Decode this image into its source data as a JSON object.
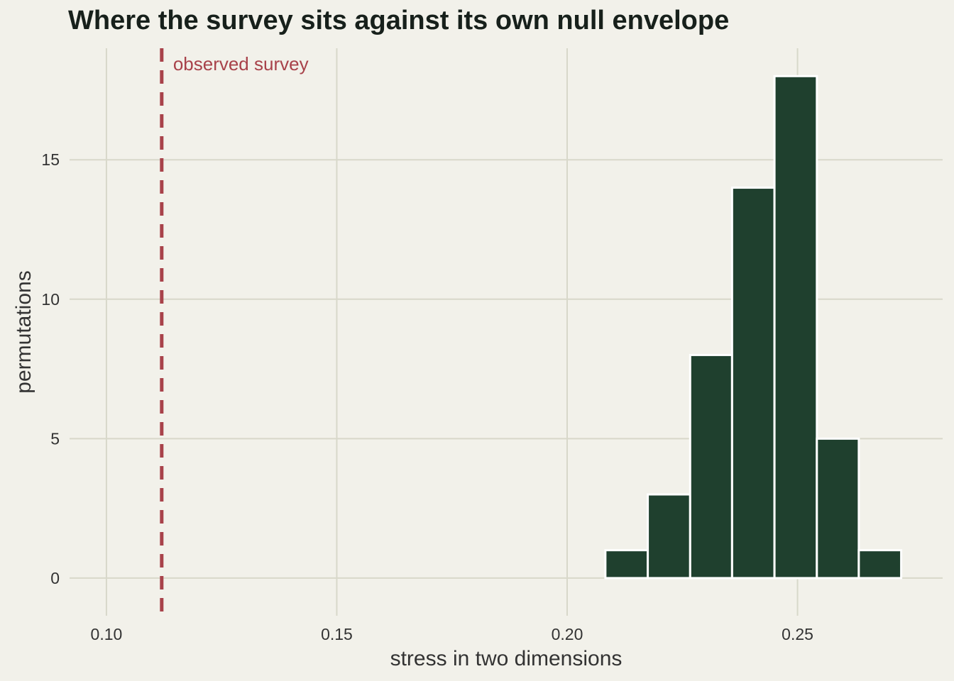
{
  "chart_data": {
    "type": "bar",
    "title": "Where the survey sits against its own null envelope",
    "xlabel": "stress in two dimensions",
    "ylabel": "permutations",
    "xlim": [
      0.092,
      0.2815
    ],
    "ylim": [
      -1.35,
      19.0
    ],
    "x_ticks": [
      {
        "value": 0.1,
        "label": "0.10"
      },
      {
        "value": 0.15,
        "label": "0.15"
      },
      {
        "value": 0.2,
        "label": "0.20"
      },
      {
        "value": 0.25,
        "label": "0.25"
      }
    ],
    "y_ticks": [
      {
        "value": 0,
        "label": "0"
      },
      {
        "value": 5,
        "label": "5"
      },
      {
        "value": 10,
        "label": "10"
      },
      {
        "value": 15,
        "label": "15"
      }
    ],
    "bins": [
      {
        "x0": 0.2083,
        "x1": 0.2175,
        "count": 1
      },
      {
        "x0": 0.2175,
        "x1": 0.2267,
        "count": 3
      },
      {
        "x0": 0.2267,
        "x1": 0.2358,
        "count": 8
      },
      {
        "x0": 0.2358,
        "x1": 0.245,
        "count": 14
      },
      {
        "x0": 0.245,
        "x1": 0.2542,
        "count": 18
      },
      {
        "x0": 0.2542,
        "x1": 0.2633,
        "count": 5
      },
      {
        "x0": 0.2633,
        "x1": 0.2725,
        "count": 1
      }
    ],
    "observed": {
      "value": 0.112,
      "label": "observed survey"
    },
    "grid": true,
    "colors": {
      "background": "#f2f1ea",
      "grid": "#d8d8ca",
      "bar_fill": "#1f402e",
      "bar_edge": "#ffffff",
      "observed_line": "#a8424a",
      "text": "#333333",
      "title": "#17201b"
    }
  }
}
